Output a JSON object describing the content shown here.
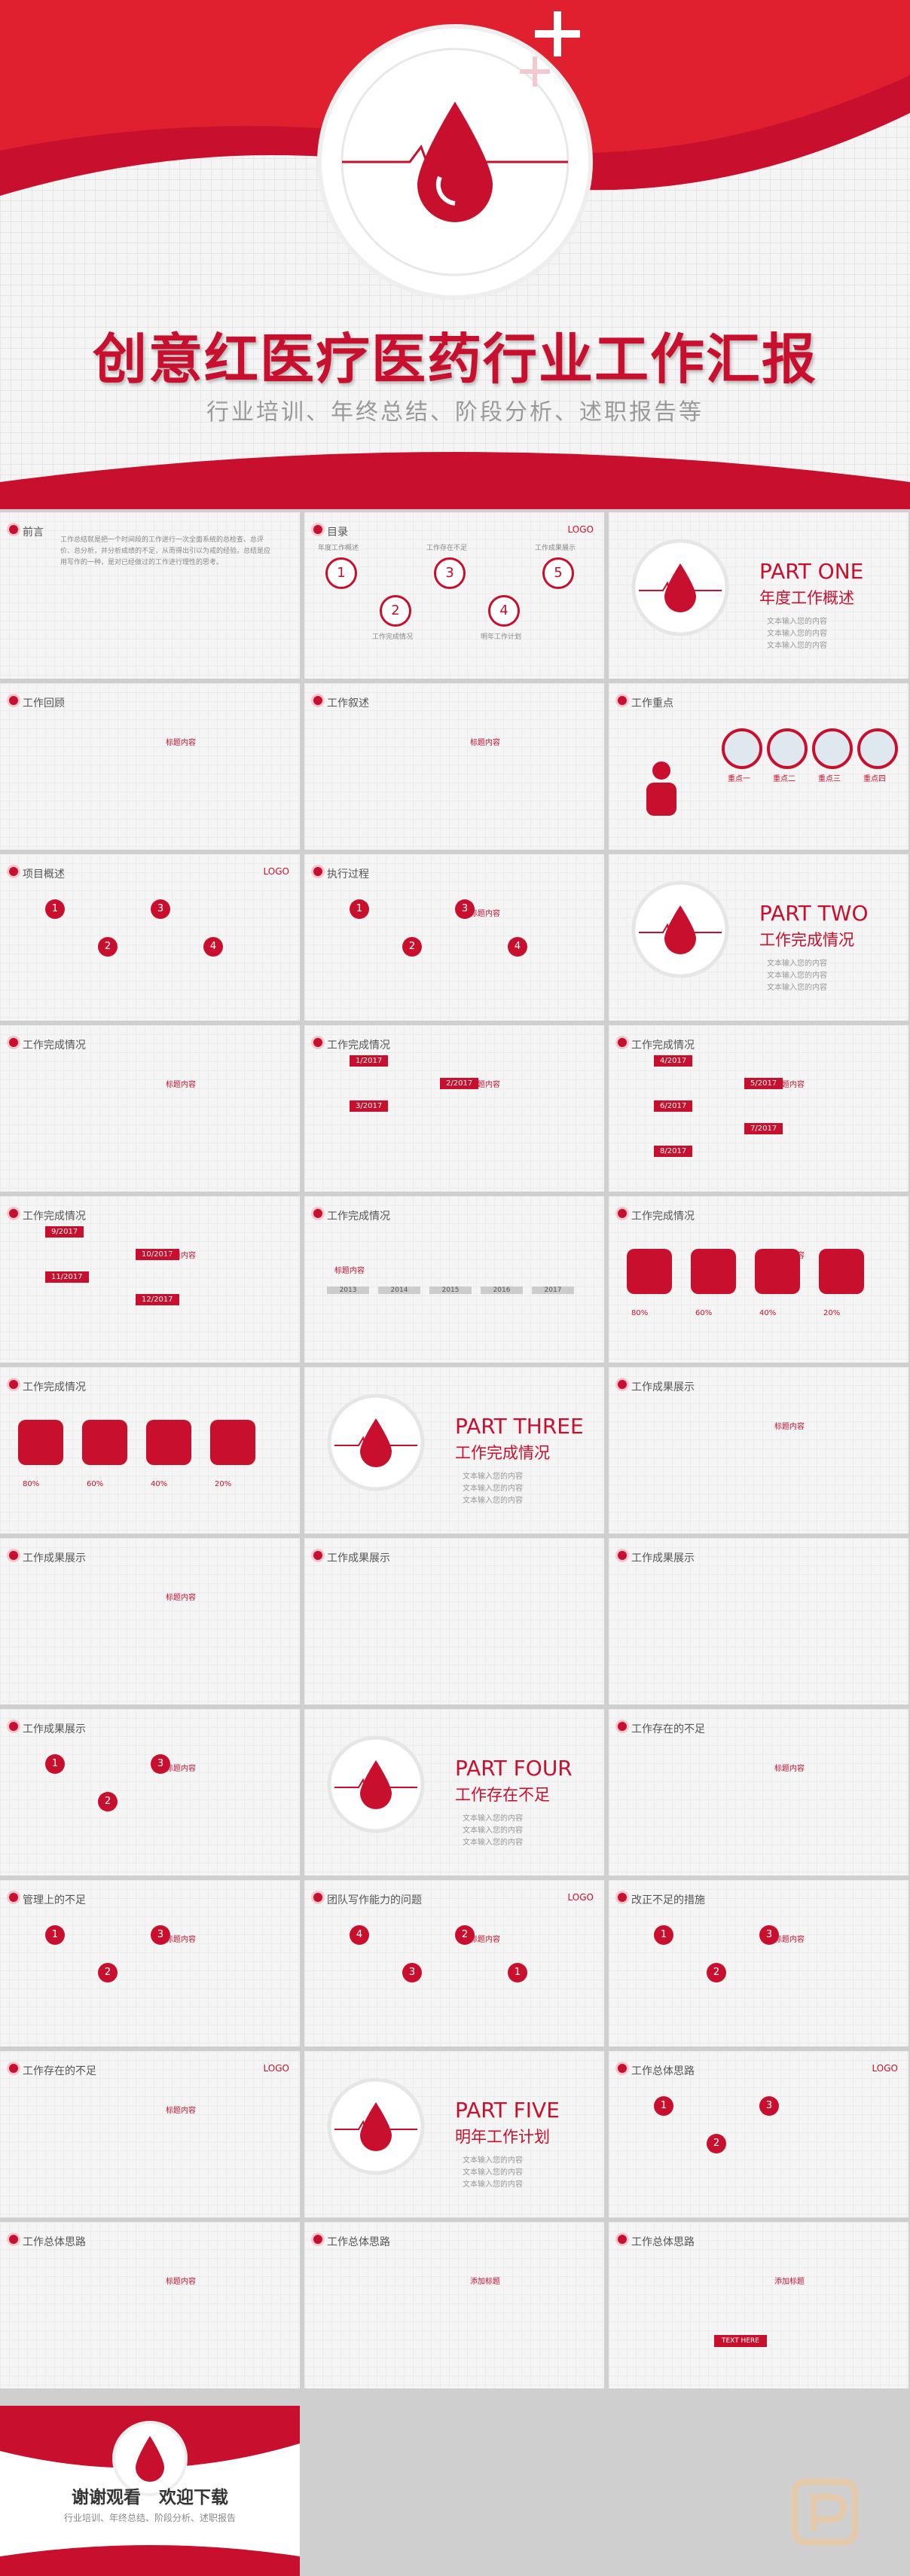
{
  "cover": {
    "title": "创意红医疗医药行业工作汇报",
    "subtitle": "行业培训、年终总结、阶段分析、述职报告等"
  },
  "slides": [
    {
      "title": "前言",
      "text": "工作总结就是把一个时间段的工作进行一次全面系统的总检查、总评价、总分析，并分析成绩的不足，从而得出引以为戒的经验。总结是应用写作的一种，是对已经做过的工作进行理性的思考。"
    },
    {
      "title": "目录",
      "logo": "LOGO",
      "items": [
        "年度工作概述",
        "工作完成情况",
        "工作存在不足",
        "明年工作计划",
        "工作成果展示"
      ]
    },
    {
      "part": "PART ONE",
      "subtitle": "年度工作概述"
    },
    {
      "title": "工作回顾",
      "label": "标题内容"
    },
    {
      "title": "工作叙述",
      "label": "标题内容"
    },
    {
      "title": "工作重点",
      "labels": [
        "重点一",
        "重点二",
        "重点三",
        "重点四"
      ]
    },
    {
      "title": "项目概述",
      "logo": "LOGO",
      "nums": [
        "1",
        "2",
        "3",
        "4"
      ]
    },
    {
      "title": "执行过程",
      "nums": [
        "1",
        "2",
        "3",
        "4"
      ],
      "label": "标题内容"
    },
    {
      "part": "PART TWO",
      "subtitle": "工作完成情况"
    },
    {
      "title": "工作完成情况",
      "label": "标题内容"
    },
    {
      "title": "工作完成情况",
      "dates": [
        "1/2017",
        "2/2017",
        "3/2017"
      ],
      "label": "标题内容"
    },
    {
      "title": "工作完成情况",
      "dates": [
        "4/2017",
        "5/2017",
        "6/2017",
        "7/2017",
        "8/2017"
      ],
      "label": "标题内容"
    },
    {
      "title": "工作完成情况",
      "dates": [
        "9/2017",
        "10/2017",
        "11/2017",
        "12/2017"
      ],
      "label": "标题内容"
    },
    {
      "title": "工作完成情况",
      "years": [
        "2013",
        "2014",
        "2015",
        "2016",
        "2017"
      ],
      "label": "标题内容"
    },
    {
      "title": "工作完成情况",
      "pcts": [
        "80%",
        "60%",
        "40%",
        "20%"
      ],
      "label": "标题内容"
    },
    {
      "title": "工作完成情况",
      "pcts": [
        "80%",
        "60%",
        "40%",
        "20%"
      ]
    },
    {
      "part": "PART THREE",
      "subtitle": "工作完成情况"
    },
    {
      "title": "工作成果展示",
      "label": "标题内容"
    },
    {
      "title": "工作成果展示",
      "label": "标题内容"
    },
    {
      "title": "工作成果展示"
    },
    {
      "title": "工作成果展示"
    },
    {
      "title": "工作成果展示",
      "nums": [
        "1",
        "2",
        "3"
      ],
      "label": "标题内容"
    },
    {
      "part": "PART FOUR",
      "subtitle": "工作存在不足"
    },
    {
      "title": "工作存在的不足",
      "label": "标题内容"
    },
    {
      "title": "管理上的不足",
      "nums": [
        "1",
        "2",
        "3"
      ],
      "label": "标题内容"
    },
    {
      "title": "团队写作能力的问题",
      "logo": "LOGO",
      "nums": [
        "4",
        "3",
        "2",
        "1"
      ],
      "label": "标题内容"
    },
    {
      "title": "改正不足的措施",
      "nums": [
        "1",
        "2",
        "3"
      ],
      "label": "标题内容"
    },
    {
      "title": "工作存在的不足",
      "logo": "LOGO",
      "label": "标题内容"
    },
    {
      "part": "PART FIVE",
      "subtitle": "明年工作计划"
    },
    {
      "title": "工作总体思路",
      "logo": "LOGO",
      "nums": [
        "1",
        "2",
        "3"
      ]
    },
    {
      "title": "工作总体思路",
      "label": "标题内容"
    },
    {
      "title": "工作总体思路",
      "label": "添加标题"
    },
    {
      "title": "工作总体思路",
      "label": "添加标题",
      "btn": "TEXT HERE"
    }
  ],
  "outro": {
    "thanks": "谢谢观看",
    "download": "欢迎下载",
    "sub": "行业培训、年终总结、阶段分析、述职报告"
  },
  "bullets": [
    "文本输入您的内容",
    "文本输入您的内容",
    "文本输入您的内容"
  ],
  "colors": {
    "accent": "#c8102e",
    "bg": "#f5f5f5"
  }
}
